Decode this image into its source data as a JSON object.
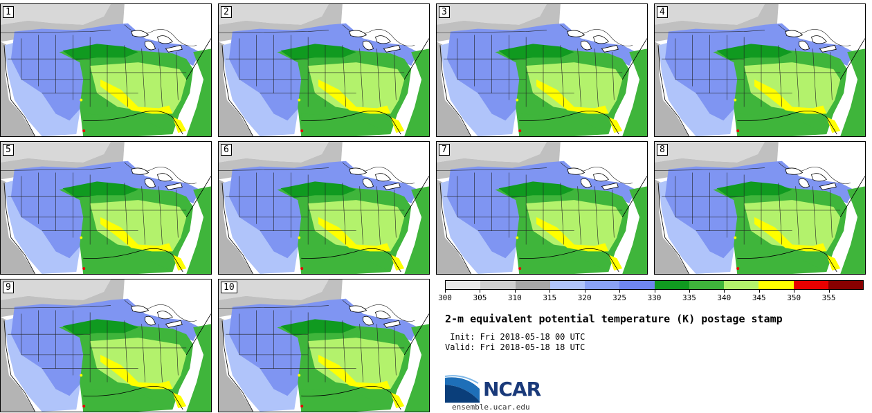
{
  "panels": [
    {
      "label": "1"
    },
    {
      "label": "2"
    },
    {
      "label": "3"
    },
    {
      "label": "4"
    },
    {
      "label": "5"
    },
    {
      "label": "6"
    },
    {
      "label": "7"
    },
    {
      "label": "8"
    },
    {
      "label": "9"
    },
    {
      "label": "10"
    }
  ],
  "colorbar": {
    "colors": [
      "#e8e8e8",
      "#cfcfcf",
      "#a6a6a6",
      "#b0c4fa",
      "#8aa2f5",
      "#6f86ef",
      "#109a20",
      "#3fb53b",
      "#b3f26c",
      "#ffff00",
      "#e80000",
      "#880000"
    ],
    "ticks": [
      "300",
      "305",
      "310",
      "315",
      "320",
      "325",
      "330",
      "335",
      "340",
      "345",
      "350",
      "355"
    ]
  },
  "title": "2-m equivalent potential temperature (K) postage stamp",
  "init": " Init: Fri 2018-05-18 00 UTC",
  "valid": "Valid: Fri 2018-05-18 18 UTC",
  "logo": {
    "text": "NCAR",
    "url": "ensemble.ucar.edu"
  }
}
